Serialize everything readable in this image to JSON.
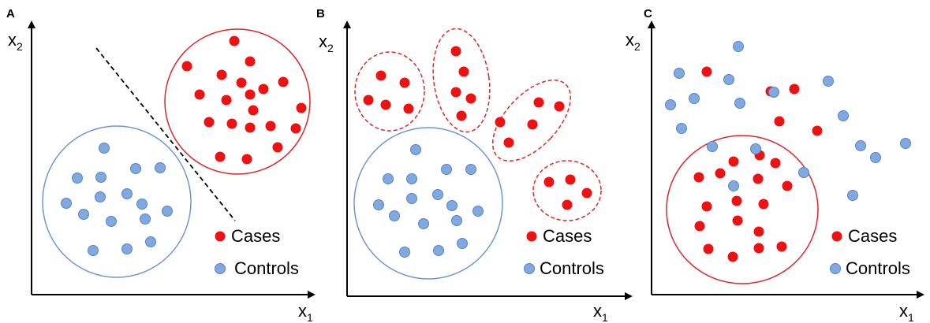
{
  "panels": [
    {
      "label": "A",
      "x_label": "x",
      "x_sub": "1",
      "y_label": "x",
      "y_sub": "2"
    },
    {
      "label": "B",
      "x_label": "x",
      "x_sub": "1",
      "y_label": "x",
      "y_sub": "2"
    },
    {
      "label": "C",
      "x_label": "x",
      "x_sub": "1",
      "y_label": "x",
      "y_sub": "2"
    }
  ],
  "legend": {
    "cases": "Cases",
    "controls": "Controls"
  },
  "colors": {
    "case": "#ee1111",
    "control": "#7fa9e0",
    "control_outline": "#5a84c4",
    "control_ring": "#6f96cc",
    "case_ring": "#d9282c",
    "axis": "#000000",
    "divider": "#000000"
  }
}
